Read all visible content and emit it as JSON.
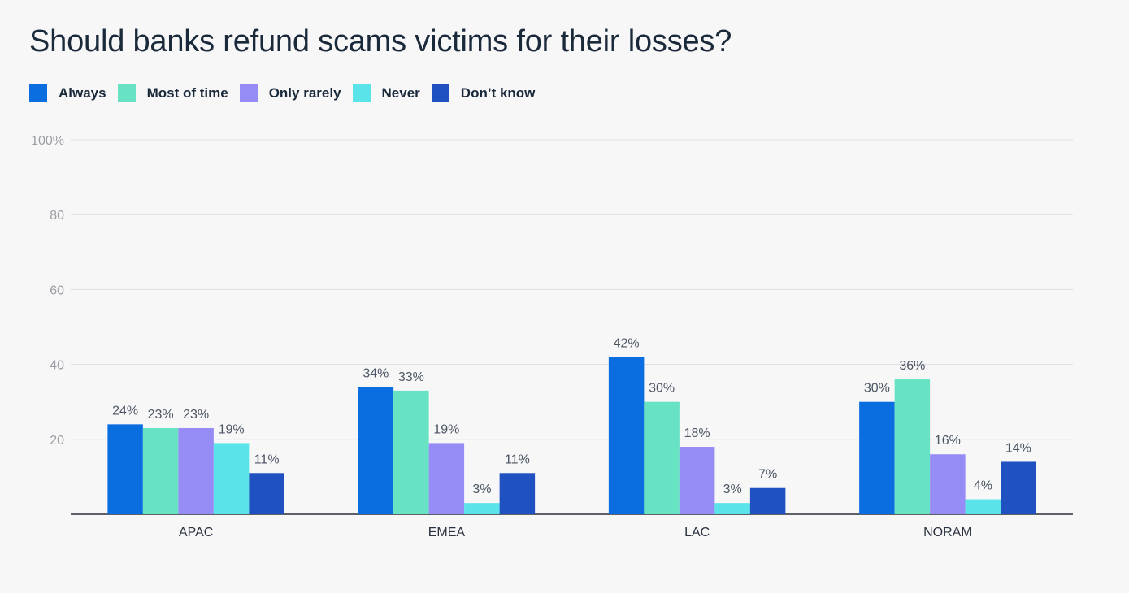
{
  "chart_data": {
    "type": "bar",
    "title": "Should banks refund scams victims for their losses?",
    "categories": [
      "APAC",
      "EMEA",
      "LAC",
      "NORAM"
    ],
    "series": [
      {
        "name": "Always",
        "color": "#0b6ee0",
        "values": [
          24,
          34,
          42,
          30
        ]
      },
      {
        "name": "Most of time",
        "color": "#67e3c4",
        "values": [
          23,
          33,
          30,
          36
        ]
      },
      {
        "name": "Only rarely",
        "color": "#968cf5",
        "values": [
          23,
          19,
          18,
          16
        ]
      },
      {
        "name": "Never",
        "color": "#5ae3e8",
        "values": [
          19,
          3,
          3,
          4
        ]
      },
      {
        "name": "Don’t know",
        "color": "#1f52c0",
        "values": [
          11,
          11,
          7,
          14
        ]
      }
    ],
    "y_ticks": [
      "",
      "20",
      "40",
      "60",
      "80",
      "100%"
    ],
    "ylim": [
      0,
      100
    ],
    "value_suffix": "%",
    "grid": true,
    "legend_position": "top-left",
    "xlabel": "",
    "ylabel": ""
  }
}
